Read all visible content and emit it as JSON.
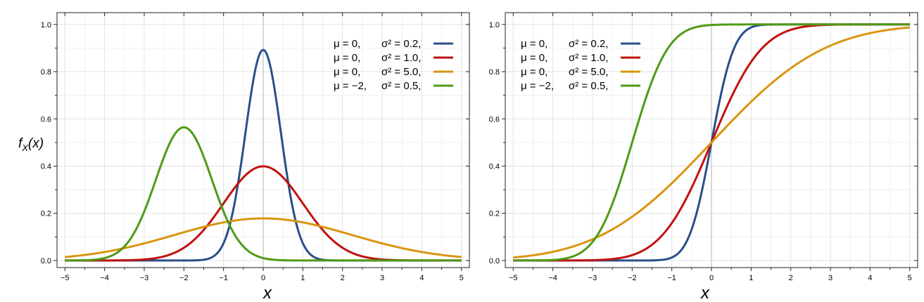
{
  "chart_data": [
    {
      "type": "line",
      "title": "",
      "xlabel": "x",
      "ylabel": "f_X(x)",
      "xlim": [
        -5.2,
        5.2
      ],
      "ylim": [
        -0.03,
        1.05
      ],
      "xticks": [
        -5,
        -4,
        -3,
        -2,
        -1,
        0,
        1,
        2,
        3,
        4,
        5
      ],
      "yticks": [
        "0.0",
        "0.2",
        "0.4",
        "0.6",
        "0.8",
        "1.0"
      ],
      "grid": true,
      "legend_position": "top-right",
      "function": "pdf",
      "series": [
        {
          "mu_label": "μ = 0,",
          "sigma_label": "σ² = 0.2,",
          "mu": 0,
          "sigma2": 0.2,
          "color": "#2a4f8a"
        },
        {
          "mu_label": "μ = 0,",
          "sigma_label": "σ² = 1.0,",
          "mu": 0,
          "sigma2": 1.0,
          "color": "#c1120e"
        },
        {
          "mu_label": "μ = 0,",
          "sigma_label": "σ² = 5.0,",
          "mu": 0,
          "sigma2": 5.0,
          "color": "#d9950f"
        },
        {
          "mu_label": "μ = −2,",
          "sigma_label": "σ² = 0.5,",
          "mu": -2,
          "sigma2": 0.5,
          "color": "#4e9a15"
        }
      ]
    },
    {
      "type": "line",
      "title": "",
      "xlabel": "x",
      "ylabel": "",
      "xlim": [
        -5.2,
        5.2
      ],
      "ylim": [
        -0.03,
        1.05
      ],
      "xticks": [
        -5,
        -4,
        -3,
        -2,
        -1,
        0,
        1,
        2,
        3,
        4,
        5
      ],
      "yticks": [
        "0.0",
        "0.2",
        "0.4",
        "0.6",
        "0.8",
        "1.0"
      ],
      "grid": true,
      "legend_position": "top-left",
      "function": "cdf",
      "series": [
        {
          "mu_label": "μ = 0,",
          "sigma_label": "σ² = 0.2,",
          "mu": 0,
          "sigma2": 0.2,
          "color": "#2a4f8a"
        },
        {
          "mu_label": "μ = 0,",
          "sigma_label": "σ² = 1.0,",
          "mu": 0,
          "sigma2": 1.0,
          "color": "#c1120e"
        },
        {
          "mu_label": "μ = 0,",
          "sigma_label": "σ² = 5.0,",
          "mu": 0,
          "sigma2": 5.0,
          "color": "#d9950f"
        },
        {
          "mu_label": "μ = −2,",
          "sigma_label": "σ² = 0.5,",
          "mu": -2,
          "sigma2": 0.5,
          "color": "#4e9a15"
        }
      ]
    }
  ]
}
